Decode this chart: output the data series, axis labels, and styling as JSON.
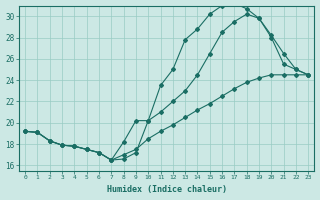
{
  "xlabel": "Humidex (Indice chaleur)",
  "bg_color": "#cce8e4",
  "grid_color": "#99ccc4",
  "line_color": "#1a6e64",
  "xlim": [
    -0.5,
    23.5
  ],
  "ylim": [
    15.5,
    31.0
  ],
  "xticks": [
    0,
    1,
    2,
    3,
    4,
    5,
    6,
    7,
    8,
    9,
    10,
    11,
    12,
    13,
    14,
    15,
    16,
    17,
    18,
    19,
    20,
    21,
    22,
    23
  ],
  "yticks": [
    16,
    18,
    20,
    22,
    24,
    26,
    28,
    30
  ],
  "line1_x": [
    0,
    1,
    2,
    3,
    4,
    5,
    6,
    7,
    8,
    9,
    10,
    11,
    12,
    13,
    14,
    15,
    16,
    17,
    18,
    19,
    20,
    21,
    22,
    23
  ],
  "line1_y": [
    19.2,
    19.1,
    18.3,
    17.9,
    17.8,
    17.5,
    17.2,
    16.5,
    16.6,
    17.2,
    20.2,
    23.5,
    25.0,
    27.8,
    28.8,
    30.2,
    31.0,
    31.2,
    30.7,
    29.8,
    28.2,
    26.5,
    25.0,
    24.5
  ],
  "line2_x": [
    0,
    1,
    2,
    3,
    4,
    5,
    6,
    7,
    8,
    9,
    10,
    11,
    12,
    13,
    14,
    15,
    16,
    17,
    18,
    19,
    20,
    21,
    22,
    23
  ],
  "line2_y": [
    19.2,
    19.1,
    18.3,
    17.9,
    17.8,
    17.5,
    17.2,
    16.5,
    18.2,
    20.2,
    20.2,
    21.0,
    22.0,
    23.0,
    24.5,
    26.5,
    28.5,
    29.5,
    30.2,
    29.8,
    28.0,
    25.5,
    25.0,
    24.5
  ],
  "line3_x": [
    0,
    1,
    2,
    3,
    4,
    5,
    6,
    7,
    8,
    9,
    10,
    11,
    12,
    13,
    14,
    15,
    16,
    17,
    18,
    19,
    20,
    21,
    22,
    23
  ],
  "line3_y": [
    19.2,
    19.1,
    18.3,
    17.9,
    17.8,
    17.5,
    17.2,
    16.5,
    17.0,
    17.5,
    18.5,
    19.2,
    19.8,
    20.5,
    21.2,
    21.8,
    22.5,
    23.2,
    23.8,
    24.2,
    24.5,
    24.5,
    24.5,
    24.5
  ]
}
